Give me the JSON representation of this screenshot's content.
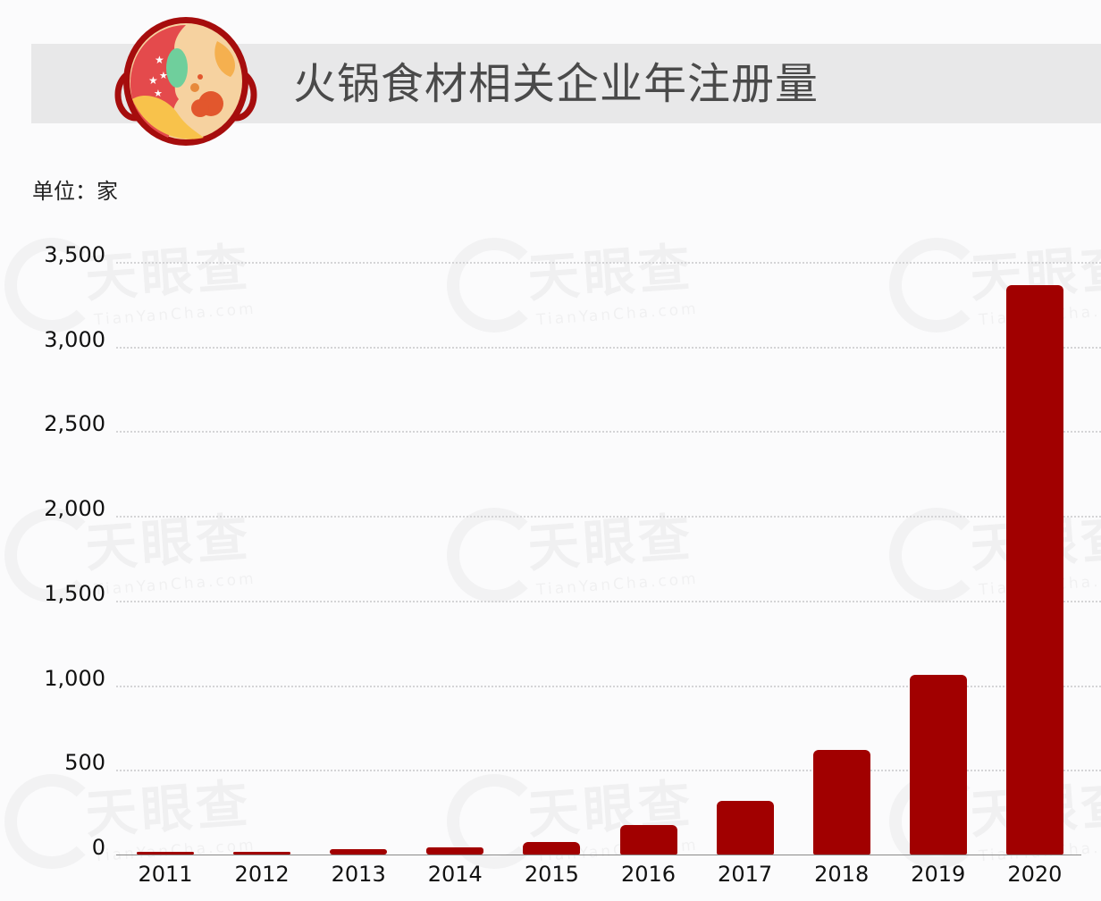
{
  "header": {
    "title": "火锅食材相关企业年注册量",
    "icon": "hotpot-icon"
  },
  "unit_label": "单位：家",
  "watermark": {
    "cn": "天眼查",
    "en": "TianYanCha.com"
  },
  "colors": {
    "bar": "#a10000",
    "title_band": "#e8e8e9",
    "background": "#fbfbfc",
    "title_text": "#4a4a4a"
  },
  "y_ticks": [
    "3,500",
    "3,000",
    "2,500",
    "2,000",
    "1,500",
    "1,000",
    "500",
    "0"
  ],
  "x_ticks": [
    "2011",
    "2012",
    "2013",
    "2014",
    "2015",
    "2016",
    "2017",
    "2018",
    "2019",
    "2020"
  ],
  "chart_data": {
    "type": "bar",
    "title": "火锅食材相关企业年注册量",
    "subtitle": "单位：家",
    "xlabel": "",
    "ylabel": "家",
    "categories": [
      "2011",
      "2012",
      "2013",
      "2014",
      "2015",
      "2016",
      "2017",
      "2018",
      "2019",
      "2020"
    ],
    "values": [
      10,
      12,
      32,
      42,
      74,
      174,
      317,
      618,
      1061,
      3363
    ],
    "ylim": [
      0,
      3500
    ],
    "yticks": [
      0,
      500,
      1000,
      1500,
      2000,
      2500,
      3000,
      3500
    ],
    "grid": true,
    "grid_style": "dotted horizontal",
    "legend": null,
    "bar_color": "#a10000"
  }
}
